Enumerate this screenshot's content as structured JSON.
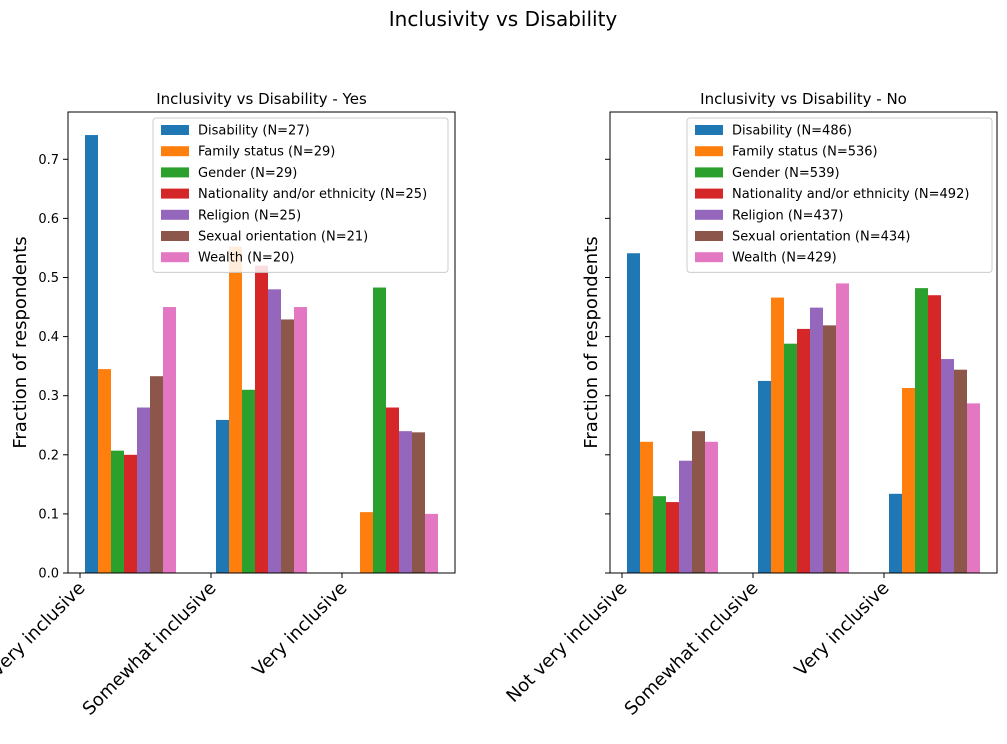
{
  "suptitle": "Inclusivity vs Disability",
  "colors": [
    "#1f77b4",
    "#ff7f0e",
    "#2ca02c",
    "#d62728",
    "#9467bd",
    "#8c564b",
    "#e377c2"
  ],
  "chart_data": [
    {
      "type": "bar",
      "title": "Inclusivity vs Disability - Yes",
      "xlabel": "",
      "ylabel": "Fraction of respondents",
      "ylim": [
        0,
        0.78
      ],
      "yticks": [
        "0.0",
        "0.1",
        "0.2",
        "0.3",
        "0.4",
        "0.5",
        "0.6",
        "0.7"
      ],
      "categories": [
        "Not very inclusive",
        "Somewhat inclusive",
        "Very inclusive"
      ],
      "legend_position": "top-right",
      "series": [
        {
          "name": "Disability (N=27)",
          "values": [
            0.741,
            0.259,
            0.0
          ]
        },
        {
          "name": "Family status (N=29)",
          "values": [
            0.345,
            0.552,
            0.103
          ]
        },
        {
          "name": "Gender (N=29)",
          "values": [
            0.207,
            0.31,
            0.483
          ]
        },
        {
          "name": "Nationality and/or ethnicity (N=25)",
          "values": [
            0.2,
            0.52,
            0.28
          ]
        },
        {
          "name": "Religion (N=25)",
          "values": [
            0.28,
            0.48,
            0.24
          ]
        },
        {
          "name": "Sexual orientation (N=21)",
          "values": [
            0.333,
            0.429,
            0.238
          ]
        },
        {
          "name": "Wealth (N=20)",
          "values": [
            0.45,
            0.45,
            0.1
          ]
        }
      ]
    },
    {
      "type": "bar",
      "title": "Inclusivity vs Disability - No",
      "xlabel": "",
      "ylabel": "Fraction of respondents",
      "ylim": [
        0,
        0.78
      ],
      "yticks": [],
      "categories": [
        "Not very inclusive",
        "Somewhat inclusive",
        "Very inclusive"
      ],
      "legend_position": "top-right",
      "series": [
        {
          "name": "Disability (N=486)",
          "values": [
            0.541,
            0.325,
            0.134
          ]
        },
        {
          "name": "Family status (N=536)",
          "values": [
            0.222,
            0.466,
            0.313
          ]
        },
        {
          "name": "Gender (N=539)",
          "values": [
            0.13,
            0.388,
            0.482
          ]
        },
        {
          "name": "Nationality and/or ethnicity (N=492)",
          "values": [
            0.12,
            0.413,
            0.47
          ]
        },
        {
          "name": "Religion (N=437)",
          "values": [
            0.19,
            0.449,
            0.362
          ]
        },
        {
          "name": "Sexual orientation (N=434)",
          "values": [
            0.24,
            0.419,
            0.344
          ]
        },
        {
          "name": "Wealth (N=429)",
          "values": [
            0.222,
            0.49,
            0.287
          ]
        }
      ]
    }
  ]
}
